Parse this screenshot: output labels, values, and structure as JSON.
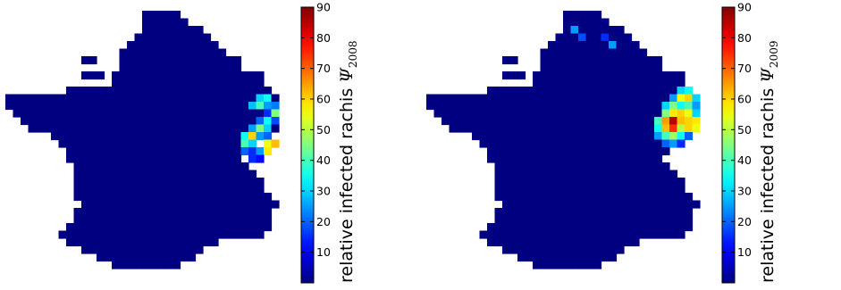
{
  "figures": [
    {
      "id": "left",
      "colorbar": {
        "label_text": "relative infected rachis ",
        "label_symbol": "Ψ",
        "label_subscript": "2008",
        "ticks": [
          "10",
          "20",
          "30",
          "40",
          "50",
          "60",
          "70",
          "80",
          "90"
        ]
      },
      "hotspots": [
        {
          "value": 30,
          "col": 33,
          "row": 11
        },
        {
          "value": 35,
          "col": 34,
          "row": 11
        },
        {
          "value": 28,
          "col": 32,
          "row": 12
        },
        {
          "value": 40,
          "col": 33,
          "row": 12
        },
        {
          "value": 25,
          "col": 34,
          "row": 12
        },
        {
          "value": 22,
          "col": 35,
          "row": 12
        },
        {
          "value": 15,
          "col": 34,
          "row": 13
        },
        {
          "value": 45,
          "col": 35,
          "row": 13
        },
        {
          "value": 20,
          "col": 33,
          "row": 14
        },
        {
          "value": 35,
          "col": 34,
          "row": 14
        },
        {
          "value": 18,
          "col": 35,
          "row": 14
        },
        {
          "value": 25,
          "col": 32,
          "row": 15
        },
        {
          "value": 45,
          "col": 33,
          "row": 15
        },
        {
          "value": 30,
          "col": 34,
          "row": 15
        },
        {
          "value": 35,
          "col": 31,
          "row": 16
        },
        {
          "value": 60,
          "col": 32,
          "row": 16
        },
        {
          "value": 25,
          "col": 33,
          "row": 16
        },
        {
          "value": 20,
          "col": 34,
          "row": 16
        },
        {
          "value": 40,
          "col": 31,
          "row": 17
        },
        {
          "value": 30,
          "col": 32,
          "row": 17
        },
        {
          "value": 55,
          "col": 34,
          "row": 17
        },
        {
          "value": 62,
          "col": 35,
          "row": 17
        },
        {
          "value": 20,
          "col": 31,
          "row": 18
        },
        {
          "value": 15,
          "col": 32,
          "row": 18
        },
        {
          "value": 25,
          "col": 33,
          "row": 18
        },
        {
          "value": 58,
          "col": 34,
          "row": 18
        },
        {
          "value": 15,
          "col": 32,
          "row": 19
        },
        {
          "value": 12,
          "col": 33,
          "row": 19
        }
      ]
    },
    {
      "id": "right",
      "colorbar": {
        "label_text": "relative infected rachis ",
        "label_symbol": "Ψ",
        "label_subscript": "2009",
        "ticks": [
          "10",
          "20",
          "30",
          "40",
          "50",
          "60",
          "70",
          "80",
          "90"
        ]
      },
      "hotspots": [
        {
          "value": 25,
          "col": 19,
          "row": 2
        },
        {
          "value": 18,
          "col": 20,
          "row": 3
        },
        {
          "value": 15,
          "col": 23,
          "row": 3
        },
        {
          "value": 25,
          "col": 24,
          "row": 4
        },
        {
          "value": 30,
          "col": 33,
          "row": 10
        },
        {
          "value": 35,
          "col": 34,
          "row": 10
        },
        {
          "value": 25,
          "col": 32,
          "row": 11
        },
        {
          "value": 55,
          "col": 33,
          "row": 11
        },
        {
          "value": 60,
          "col": 34,
          "row": 11
        },
        {
          "value": 30,
          "col": 35,
          "row": 11
        },
        {
          "value": 30,
          "col": 31,
          "row": 12
        },
        {
          "value": 45,
          "col": 32,
          "row": 12
        },
        {
          "value": 35,
          "col": 33,
          "row": 12
        },
        {
          "value": 40,
          "col": 34,
          "row": 12
        },
        {
          "value": 25,
          "col": 35,
          "row": 12
        },
        {
          "value": 45,
          "col": 31,
          "row": 13
        },
        {
          "value": 58,
          "col": 32,
          "row": 13
        },
        {
          "value": 60,
          "col": 33,
          "row": 13
        },
        {
          "value": 55,
          "col": 34,
          "row": 13
        },
        {
          "value": 30,
          "col": 35,
          "row": 13
        },
        {
          "value": 40,
          "col": 30,
          "row": 14
        },
        {
          "value": 65,
          "col": 31,
          "row": 14
        },
        {
          "value": 85,
          "col": 32,
          "row": 14
        },
        {
          "value": 62,
          "col": 33,
          "row": 14
        },
        {
          "value": 60,
          "col": 34,
          "row": 14
        },
        {
          "value": 58,
          "col": 35,
          "row": 14
        },
        {
          "value": 35,
          "col": 30,
          "row": 15
        },
        {
          "value": 62,
          "col": 31,
          "row": 15
        },
        {
          "value": 75,
          "col": 32,
          "row": 15
        },
        {
          "value": 50,
          "col": 33,
          "row": 15
        },
        {
          "value": 60,
          "col": 34,
          "row": 15
        },
        {
          "value": 55,
          "col": 35,
          "row": 15
        },
        {
          "value": 25,
          "col": 30,
          "row": 16
        },
        {
          "value": 40,
          "col": 31,
          "row": 16
        },
        {
          "value": 48,
          "col": 32,
          "row": 16
        },
        {
          "value": 35,
          "col": 33,
          "row": 16
        },
        {
          "value": 20,
          "col": 34,
          "row": 16
        },
        {
          "value": 20,
          "col": 31,
          "row": 17
        },
        {
          "value": 25,
          "col": 32,
          "row": 17
        },
        {
          "value": 15,
          "col": 33,
          "row": 17
        }
      ]
    }
  ]
}
